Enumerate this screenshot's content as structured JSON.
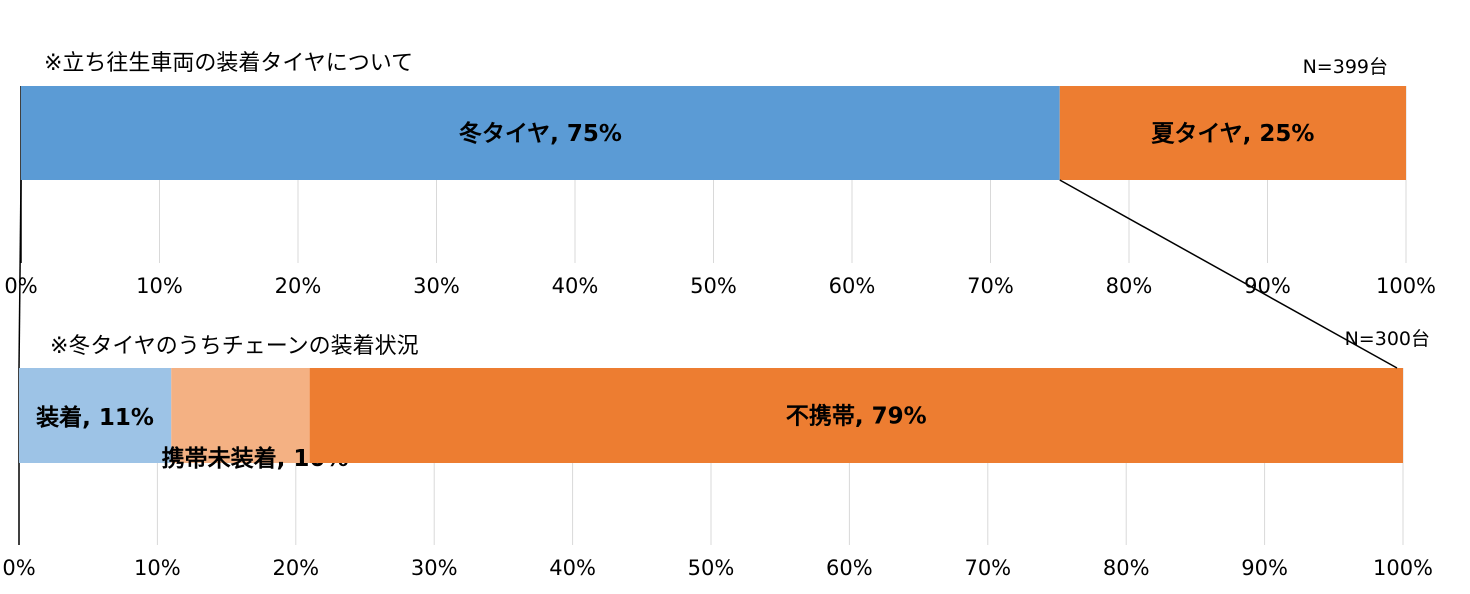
{
  "chart_data": [
    {
      "type": "bar",
      "orientation": "horizontal-stacked-100",
      "title": "※立ち往生車両の装着タイヤについて",
      "note": "N=399台",
      "xlim": [
        0,
        100
      ],
      "ticks": [
        "0%",
        "10%",
        "20%",
        "30%",
        "40%",
        "50%",
        "60%",
        "70%",
        "80%",
        "90%",
        "100%"
      ],
      "grid": true,
      "series": [
        {
          "name": "冬タイヤ",
          "value": 75,
          "label": "冬タイヤ, 75%",
          "color": "#5b9bd5"
        },
        {
          "name": "夏タイヤ",
          "value": 25,
          "label": "夏タイヤ, 25%",
          "color": "#ed7d31"
        }
      ]
    },
    {
      "type": "bar",
      "orientation": "horizontal-stacked-100",
      "title": "※冬タイヤのうちチェーンの装着状況",
      "note": "N=300台",
      "xlim": [
        0,
        100
      ],
      "ticks": [
        "0%",
        "10%",
        "20%",
        "30%",
        "40%",
        "50%",
        "60%",
        "70%",
        "80%",
        "90%",
        "100%"
      ],
      "grid": true,
      "series": [
        {
          "name": "装着",
          "value": 11,
          "label": "装着, 11%",
          "color": "#9dc3e6"
        },
        {
          "name": "携帯未装着",
          "value": 10,
          "label": "携帯未装着, 10%",
          "color": "#f4b183"
        },
        {
          "name": "不携帯",
          "value": 79,
          "label": "不携帯, 79%",
          "color": "#ed7d31"
        }
      ]
    }
  ]
}
